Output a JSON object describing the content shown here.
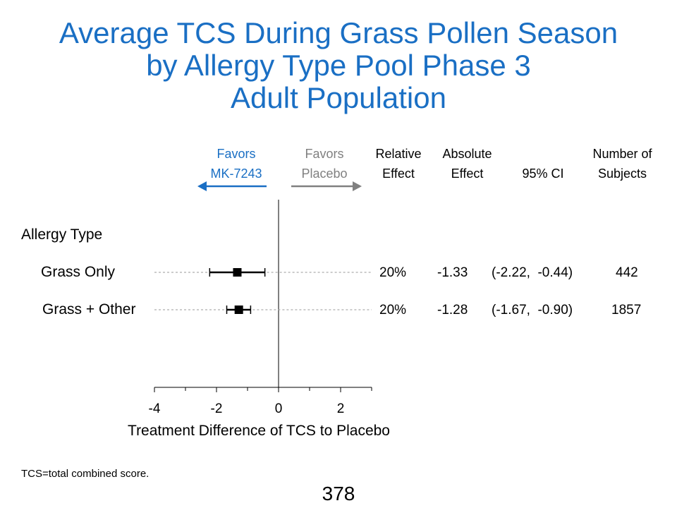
{
  "title": {
    "line1": "Average TCS During Grass Pollen Season",
    "line2": "by Allergy Type Pool Phase 3",
    "line3": "Adult Population"
  },
  "header": {
    "favors_left_1": "Favors",
    "favors_left_2": "MK-7243",
    "favors_right_1": "Favors",
    "favors_right_2": "Placebo",
    "relative_1": "Relative",
    "relative_2": "Effect",
    "absolute_1": "Absolute",
    "absolute_2": "Effect",
    "ci": "95% CI",
    "subjects_1": "Number of",
    "subjects_2": "Subjects"
  },
  "colors": {
    "title": "#1a6fc4",
    "favors_left": "#1a6fc4",
    "favors_right": "#808080"
  },
  "section_label": "Allergy Type",
  "footnote": "TCS=total combined score.",
  "page_number": "378",
  "chart_data": {
    "type": "forest",
    "xlabel": "Treatment Difference of TCS to Placebo",
    "xlim": [
      -4,
      3
    ],
    "xticks": [
      -4,
      -2,
      0,
      2
    ],
    "xtick_labels": [
      "-4",
      "-2",
      "0",
      "2"
    ],
    "minor_ticks": [
      -3,
      -1,
      1,
      3
    ],
    "reference_line": 0,
    "rows": [
      {
        "label": "Grass Only",
        "estimate": -1.33,
        "ci_low": -2.22,
        "ci_high": -0.44,
        "relative": "20%",
        "absolute": "-1.33",
        "ci": "(-2.22,  -0.44)",
        "n": "442"
      },
      {
        "label": "Grass + Other",
        "estimate": -1.28,
        "ci_low": -1.67,
        "ci_high": -0.9,
        "relative": "20%",
        "absolute": "-1.28",
        "ci": "(-1.67,  -0.90)",
        "n": "1857"
      }
    ]
  }
}
